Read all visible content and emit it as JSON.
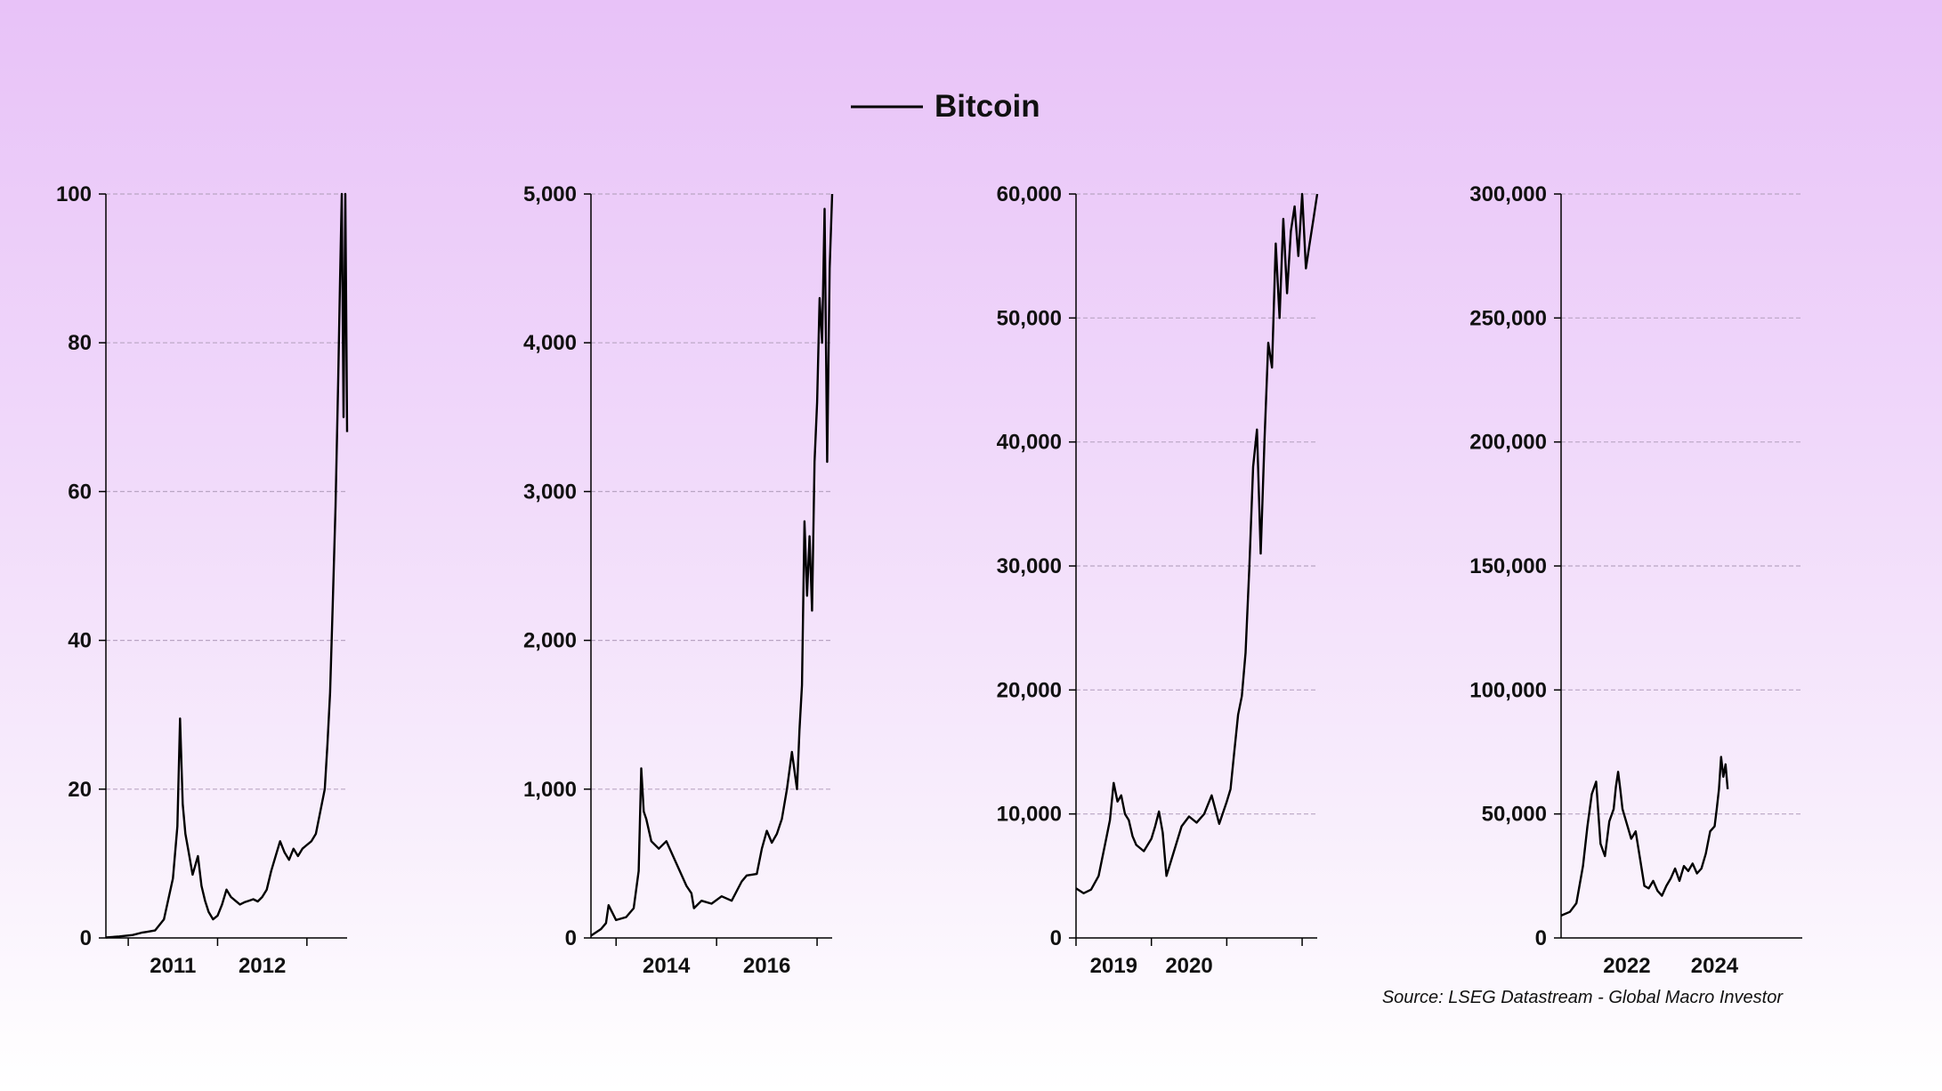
{
  "legend": {
    "label": "Bitcoin",
    "line_color": "#000000"
  },
  "source": "Source: LSEG Datastream - Global Macro Investor",
  "colors": {
    "grid": "#b9a5c3",
    "axis": "#000000",
    "series": "#000000"
  },
  "chart_data": [
    {
      "type": "line",
      "title": "",
      "xlabel": "",
      "ylabel": "",
      "ylim": [
        0,
        100
      ],
      "xlim": [
        2010.55,
        2013.25
      ],
      "grid": true,
      "yticks": [
        0,
        20,
        40,
        60,
        80,
        100
      ],
      "ytick_labels": [
        "0",
        "20",
        "40",
        "60",
        "80",
        "100"
      ],
      "xticks": [
        2010.8,
        2011.8,
        2012.8
      ],
      "xlabels": [
        {
          "x": 2011.3,
          "label": "2011"
        },
        {
          "x": 2012.3,
          "label": "2012"
        }
      ],
      "series": [
        {
          "x": [
            2010.55,
            2010.7,
            2010.85,
            2010.95,
            2011.0,
            2011.1,
            2011.2,
            2011.3,
            2011.35,
            2011.38,
            2011.41,
            2011.44,
            2011.47,
            2011.52,
            2011.58,
            2011.62,
            2011.66,
            2011.7,
            2011.75,
            2011.8,
            2011.85,
            2011.9,
            2011.95,
            2012.0,
            2012.05,
            2012.1,
            2012.15,
            2012.2,
            2012.25,
            2012.3,
            2012.35,
            2012.4,
            2012.45,
            2012.5,
            2012.55,
            2012.6,
            2012.65,
            2012.7,
            2012.75,
            2012.8,
            2012.85,
            2012.9,
            2012.95,
            2013.0,
            2013.03,
            2013.06,
            2013.09,
            2013.12,
            2013.15,
            2013.17,
            2013.19,
            2013.21,
            2013.23,
            2013.25
          ],
          "y": [
            0.06,
            0.2,
            0.4,
            0.7,
            0.8,
            1.0,
            2.5,
            8.0,
            15.0,
            29.5,
            18.0,
            14.0,
            12.0,
            8.5,
            11.0,
            7.0,
            5.0,
            3.5,
            2.5,
            3.0,
            4.5,
            6.5,
            5.5,
            5.0,
            4.5,
            4.8,
            5.0,
            5.2,
            4.9,
            5.5,
            6.5,
            9.0,
            11.0,
            13.0,
            11.5,
            10.5,
            12.0,
            11.0,
            12.0,
            12.5,
            13.0,
            14.0,
            17.0,
            20.0,
            26.0,
            33.0,
            45.0,
            58.0,
            75.0,
            88.0,
            100.0,
            70.0,
            100.0,
            68.0
          ]
        }
      ]
    },
    {
      "type": "line",
      "title": "",
      "xlabel": "",
      "ylabel": "",
      "ylim": [
        0,
        5000
      ],
      "xlim": [
        2013.0,
        2017.8
      ],
      "grid": true,
      "yticks": [
        0,
        1000,
        2000,
        3000,
        4000,
        5000
      ],
      "ytick_labels": [
        "0",
        "1,000",
        "2,000",
        "3,000",
        "4,000",
        "5,000"
      ],
      "xticks": [
        2013.5,
        2015.5,
        2017.5
      ],
      "xlabels": [
        {
          "x": 2014.5,
          "label": "2014"
        },
        {
          "x": 2016.5,
          "label": "2016"
        }
      ],
      "series": [
        {
          "x": [
            2013.0,
            2013.2,
            2013.3,
            2013.35,
            2013.5,
            2013.7,
            2013.85,
            2013.95,
            2014.0,
            2014.05,
            2014.1,
            2014.2,
            2014.35,
            2014.5,
            2014.7,
            2014.9,
            2015.0,
            2015.05,
            2015.2,
            2015.4,
            2015.6,
            2015.8,
            2016.0,
            2016.1,
            2016.3,
            2016.4,
            2016.5,
            2016.6,
            2016.7,
            2016.8,
            2016.9,
            2017.0,
            2017.1,
            2017.15,
            2017.2,
            2017.25,
            2017.3,
            2017.35,
            2017.4,
            2017.45,
            2017.5,
            2017.55,
            2017.6,
            2017.65,
            2017.7,
            2017.75,
            2017.8
          ],
          "y": [
            15,
            60,
            100,
            220,
            120,
            140,
            200,
            450,
            1140,
            850,
            800,
            650,
            600,
            650,
            500,
            350,
            300,
            200,
            250,
            230,
            280,
            250,
            380,
            420,
            430,
            600,
            720,
            640,
            700,
            800,
            1000,
            1250,
            1000,
            1400,
            1700,
            2800,
            2300,
            2700,
            2200,
            3200,
            3600,
            4300,
            4000,
            4900,
            3200,
            4500,
            5000
          ]
        }
      ]
    },
    {
      "type": "line",
      "title": "",
      "xlabel": "",
      "ylabel": "",
      "ylim": [
        0,
        60000
      ],
      "xlim": [
        2018.0,
        2021.2
      ],
      "grid": true,
      "yticks": [
        0,
        10000,
        20000,
        30000,
        40000,
        50000,
        60000
      ],
      "ytick_labels": [
        "0",
        "10,000",
        "20,000",
        "30,000",
        "40,000",
        "50,000",
        "60,000"
      ],
      "xticks": [
        2018.0,
        2019.0,
        2020.0,
        2021.0
      ],
      "xlabels": [
        {
          "x": 2018.5,
          "label": "2019"
        },
        {
          "x": 2019.5,
          "label": "2020"
        }
      ],
      "series": [
        {
          "x": [
            2018.0,
            2018.1,
            2018.2,
            2018.3,
            2018.4,
            2018.45,
            2018.5,
            2018.55,
            2018.6,
            2018.65,
            2018.7,
            2018.75,
            2018.8,
            2018.9,
            2019.0,
            2019.05,
            2019.1,
            2019.15,
            2019.2,
            2019.3,
            2019.4,
            2019.5,
            2019.6,
            2019.7,
            2019.8,
            2019.9,
            2020.0,
            2020.05,
            2020.1,
            2020.15,
            2020.2,
            2020.25,
            2020.3,
            2020.35,
            2020.4,
            2020.45,
            2020.5,
            2020.55,
            2020.6,
            2020.65,
            2020.7,
            2020.75,
            2020.8,
            2020.85,
            2020.9,
            2020.95,
            2021.0,
            2021.05,
            2021.1,
            2021.15,
            2021.2
          ],
          "y": [
            4000,
            3600,
            3900,
            5000,
            8000,
            9500,
            12500,
            11000,
            11500,
            10000,
            9500,
            8200,
            7500,
            7000,
            8000,
            9000,
            10200,
            8500,
            5000,
            7000,
            9000,
            9800,
            9300,
            10000,
            11500,
            9200,
            11000,
            12000,
            15000,
            18000,
            19500,
            23000,
            30000,
            38000,
            41000,
            31000,
            40000,
            48000,
            46000,
            56000,
            50000,
            58000,
            52000,
            57000,
            59000,
            55000,
            60000,
            54000,
            56000,
            58000,
            60000
          ]
        }
      ]
    },
    {
      "type": "line",
      "title": "",
      "xlabel": "",
      "ylabel": "",
      "ylim": [
        0,
        300000
      ],
      "xlim": [
        2020.5,
        2026.0
      ],
      "grid": true,
      "yticks": [
        0,
        50000,
        100000,
        150000,
        200000,
        250000,
        300000
      ],
      "ytick_labels": [
        "0",
        "50,000",
        "100,000",
        "150,000",
        "200,000",
        "250,000",
        "300,000"
      ],
      "xticks": [],
      "xlabels": [
        {
          "x": 2022.0,
          "label": "2022"
        },
        {
          "x": 2024.0,
          "label": "2024"
        }
      ],
      "series": [
        {
          "x": [
            2020.5,
            2020.7,
            2020.85,
            2021.0,
            2021.1,
            2021.2,
            2021.3,
            2021.4,
            2021.5,
            2021.6,
            2021.7,
            2021.75,
            2021.8,
            2021.85,
            2021.9,
            2022.0,
            2022.1,
            2022.2,
            2022.3,
            2022.4,
            2022.5,
            2022.6,
            2022.7,
            2022.8,
            2022.9,
            2023.0,
            2023.1,
            2023.2,
            2023.3,
            2023.4,
            2023.5,
            2023.6,
            2023.7,
            2023.8,
            2023.9,
            2024.0,
            2024.05,
            2024.1,
            2024.15,
            2024.2,
            2024.25,
            2024.3
          ],
          "y": [
            9000,
            10500,
            14000,
            29000,
            45000,
            58000,
            63000,
            38000,
            33000,
            47000,
            52000,
            61000,
            67000,
            60000,
            52000,
            46000,
            40000,
            43000,
            32000,
            21000,
            20000,
            23000,
            19000,
            17000,
            21000,
            24000,
            28000,
            23000,
            29000,
            27000,
            30000,
            26000,
            28000,
            34000,
            43000,
            45000,
            52000,
            60000,
            73000,
            65000,
            70000,
            60000
          ]
        }
      ]
    }
  ]
}
